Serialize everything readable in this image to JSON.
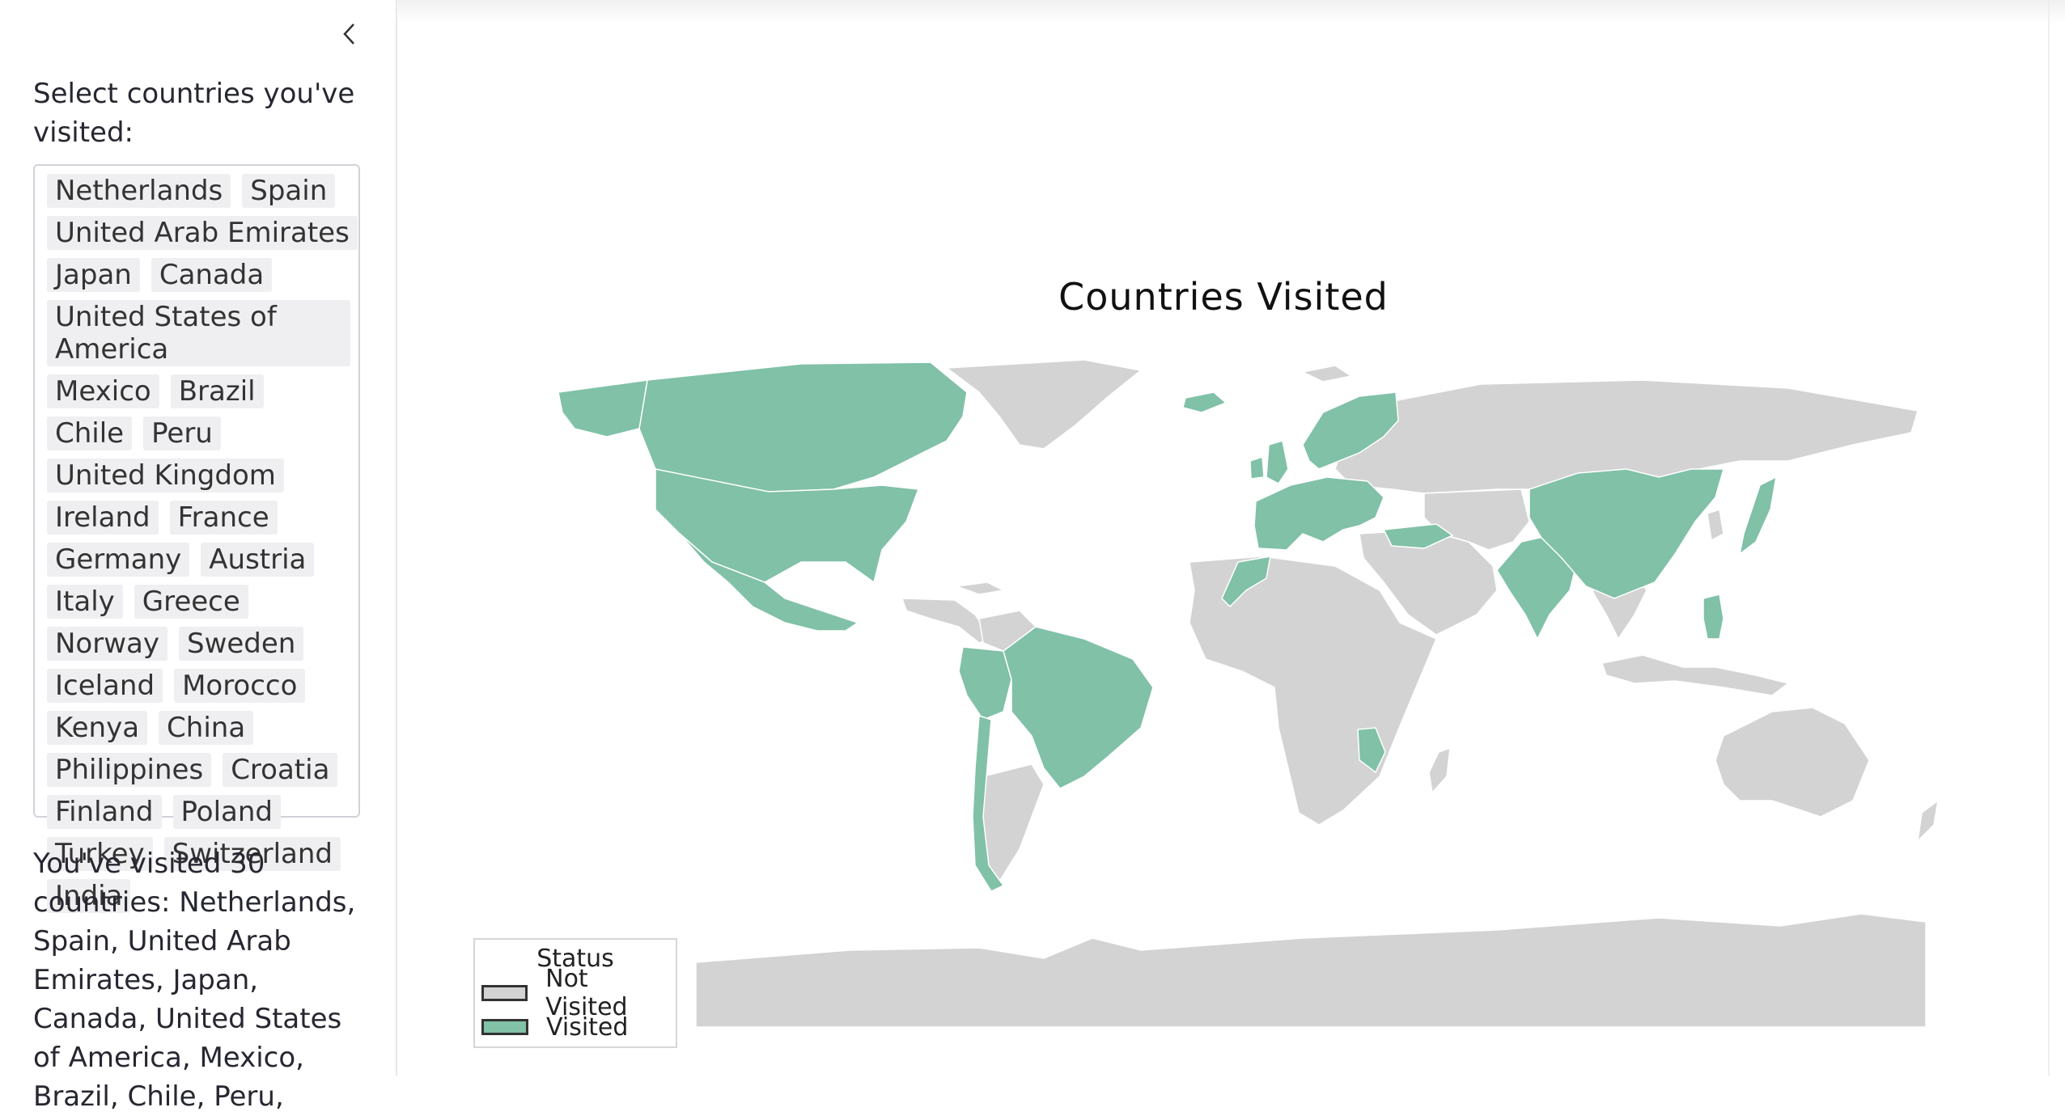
{
  "sidebar": {
    "collapse_icon": "chevron-left-icon",
    "prompt": "Select countries you've visited:",
    "selected": [
      "Netherlands",
      "Spain",
      "United Arab Emirates",
      "Japan",
      "Canada",
      "United States of America",
      "Mexico",
      "Brazil",
      "Chile",
      "Peru",
      "United Kingdom",
      "Ireland",
      "France",
      "Germany",
      "Austria",
      "Italy",
      "Greece",
      "Norway",
      "Sweden",
      "Iceland",
      "Morocco",
      "Kenya",
      "China",
      "Philippines",
      "Croatia",
      "Finland",
      "Poland",
      "Turkey",
      "Switzerland",
      "India"
    ],
    "summary": "You've visited 30 countries: Netherlands, Spain, United Arab Emirates, Japan, Canada, United States of America, Mexico, Brazil, Chile, Peru,"
  },
  "map": {
    "title": "Countries Visited",
    "legend": {
      "title": "Status",
      "items": [
        {
          "label": "Not Visited",
          "color": "#d3d3d3"
        },
        {
          "label": "Visited",
          "color": "#80c1a7"
        }
      ]
    },
    "colors": {
      "visited": "#80c1a7",
      "not_visited": "#d3d3d3"
    }
  }
}
